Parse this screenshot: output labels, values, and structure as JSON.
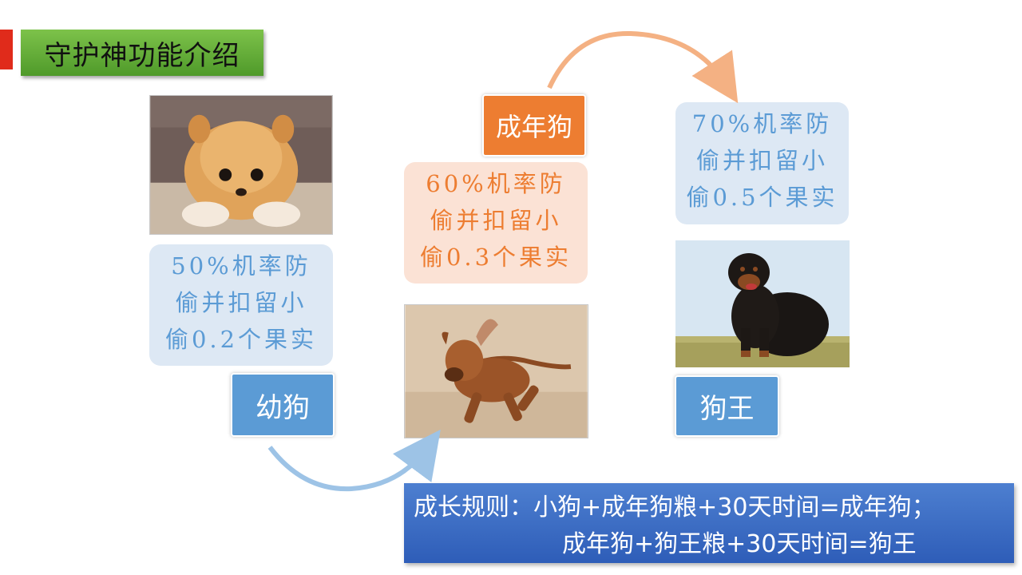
{
  "title": "守护神功能介绍",
  "stages": [
    {
      "name": "幼狗",
      "desc": [
        "50%机率防",
        "偷并扣留小",
        "偷0.2个果实"
      ],
      "photo": "pomeranian-puppy-photo"
    },
    {
      "name": "成年狗",
      "desc": [
        "60%机率防",
        "偷并扣留小",
        "偷0.3个果实"
      ],
      "photo": "running-brown-dog-photo"
    },
    {
      "name": "狗王",
      "desc": [
        "70%机率防",
        "偷并扣留小",
        "偷0.5个果实"
      ],
      "photo": "rottweiler-dog-photo"
    }
  ],
  "rule": {
    "line1": "成长规则：小狗+成年狗粮+30天时间=成年狗；",
    "line2": "成年狗+狗王粮+30天时间=狗王"
  },
  "colors": {
    "title_bg": "#5fa935",
    "blue": "#5b9bd5",
    "orange": "#ed7d31",
    "blue_light": "#dde8f4",
    "orange_light": "#fbe2d5",
    "rule_bg": "#3a6cc4",
    "accent_red": "#e02b1b"
  }
}
